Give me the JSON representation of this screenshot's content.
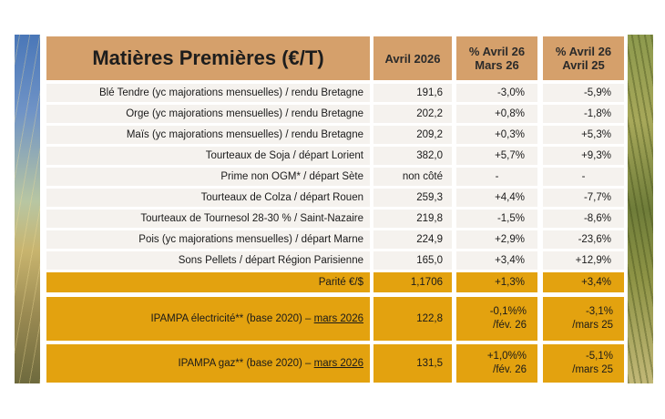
{
  "header": {
    "title": "Matières Premières (€/T)",
    "col_month": "Avril 2026",
    "col_vs_prev_line1": "% Avril 26",
    "col_vs_prev_line2": "Mars 26",
    "col_vs_year_line1": "% Avril 26",
    "col_vs_year_line2": "Avril 25"
  },
  "rows": [
    {
      "label": "Blé Tendre (yc majorations mensuelles) / rendu Bretagne",
      "value": "191,6",
      "vs_prev": "-3,0%",
      "vs_year": "-5,9%"
    },
    {
      "label": "Orge (yc majorations mensuelles) / rendu Bretagne",
      "value": "202,2",
      "vs_prev": "+0,8%",
      "vs_year": "-1,8%"
    },
    {
      "label": "Maïs (yc majorations mensuelles) / rendu Bretagne",
      "value": "209,2",
      "vs_prev": "+0,3%",
      "vs_year": "+5,3%"
    },
    {
      "label": "Tourteaux de Soja / départ Lorient",
      "value": "382,0",
      "vs_prev": "+5,7%",
      "vs_year": "+9,3%"
    },
    {
      "label": "Prime non OGM* / départ Sète",
      "value": "non côté",
      "vs_prev": "-",
      "vs_year": "-"
    },
    {
      "label": "Tourteaux de Colza / départ Rouen",
      "value": "259,3",
      "vs_prev": "+4,4%",
      "vs_year": "-7,7%"
    },
    {
      "label": "Tourteaux de Tournesol 28-30 % / Saint-Nazaire",
      "value": "219,8",
      "vs_prev": "-1,5%",
      "vs_year": "-8,6%"
    },
    {
      "label": "Pois (yc majorations mensuelles) / départ Marne",
      "value": "224,9",
      "vs_prev": "+2,9%",
      "vs_year": "-23,6%"
    },
    {
      "label": "Sons Pellets / départ Région Parisienne",
      "value": "165,0",
      "vs_prev": "+3,4%",
      "vs_year": "+12,9%"
    }
  ],
  "parity": {
    "label": "Parité €/$",
    "value": "1,1706",
    "vs_prev": "+1,3%",
    "vs_year": "+3,4%"
  },
  "ipampa_elec": {
    "label": "IPAMPA électricité** (base 2020) – ",
    "period": "mars 2026",
    "value": "122,8",
    "vs_prev_line1": "-0,1%%",
    "vs_prev_line2": "/fév. 26",
    "vs_year_line1": "-3,1%",
    "vs_year_line2": "/mars 25"
  },
  "ipampa_gaz": {
    "label": "IPAMPA gaz** (base 2020) – ",
    "period": "mars 2026",
    "value": "131,5",
    "vs_prev_line1": "+1,0%%",
    "vs_prev_line2": "/fév. 26",
    "vs_year_line1": "-5,1%",
    "vs_year_line2": "/mars 25"
  },
  "colors": {
    "header": "#d5a06b",
    "row": "#f5f2ee",
    "highlight": "#e3a20f"
  }
}
